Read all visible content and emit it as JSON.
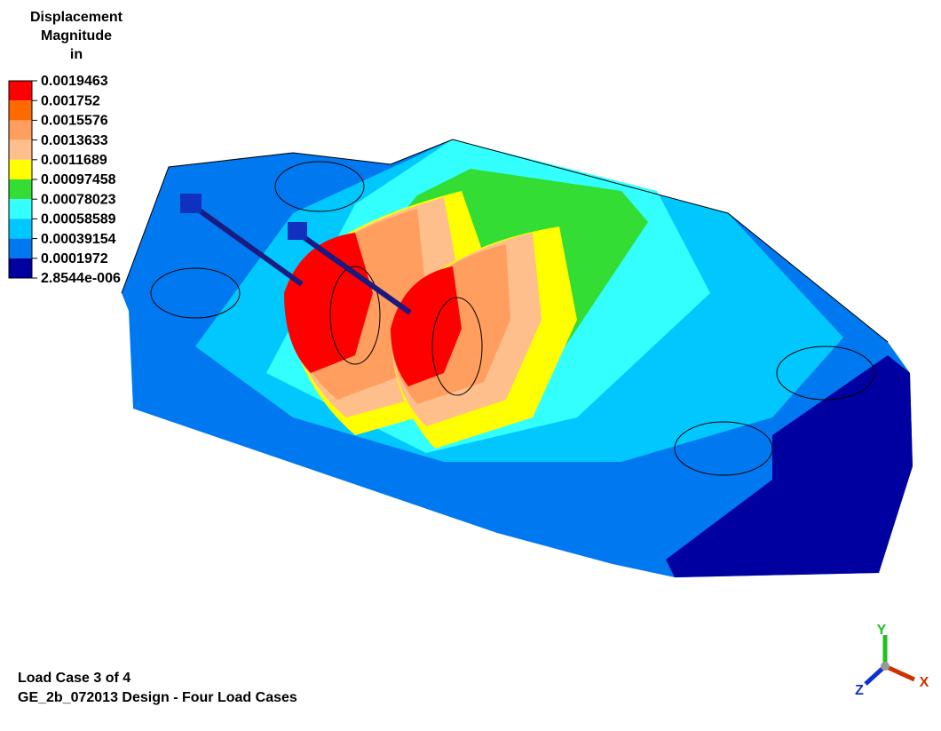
{
  "legend": {
    "title": [
      "Displacement",
      "Magnitude",
      "in"
    ],
    "labels": [
      "0.0019463",
      "0.001752",
      "0.0015576",
      "0.0013633",
      "0.0011689",
      "0.00097458",
      "0.00078023",
      "0.00058589",
      "0.00039154",
      "0.0001972",
      "2.8544e-006"
    ],
    "colors": [
      "#ff0000",
      "#ff6a00",
      "#ff9e5e",
      "#ffbf8c",
      "#ffff00",
      "#33dd33",
      "#33ffff",
      "#00c8ff",
      "#0078f0",
      "#0000a0"
    ]
  },
  "footer": {
    "line1": "Load Case 3 of 4",
    "line2": "GE_2b_072013 Design - Four Load Cases"
  },
  "triad": {
    "x": "X",
    "y": "Y",
    "z": "Z"
  }
}
